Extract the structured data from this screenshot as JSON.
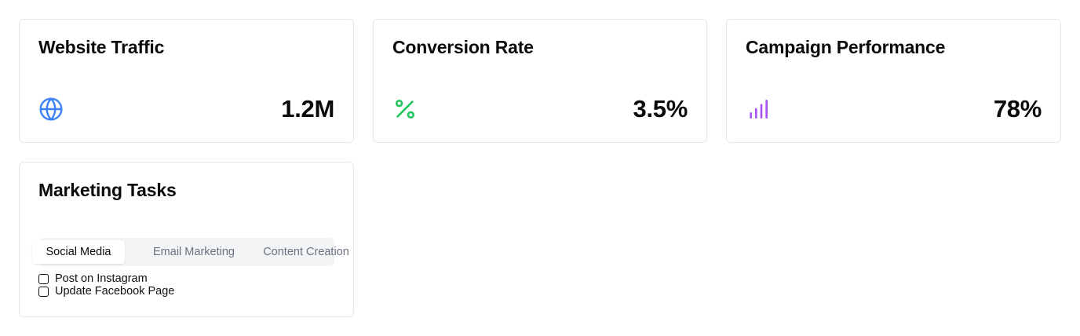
{
  "stats": [
    {
      "title": "Website Traffic",
      "value": "1.2M",
      "icon": "globe-icon",
      "color": "#3b82f6"
    },
    {
      "title": "Conversion Rate",
      "value": "3.5%",
      "icon": "percent-icon",
      "color": "#22c55e"
    },
    {
      "title": "Campaign Performance",
      "value": "78%",
      "icon": "bar-chart-icon",
      "color": "#a855f7"
    }
  ],
  "tasks_card": {
    "title": "Marketing Tasks",
    "tabs": [
      {
        "label": "Social Media",
        "active": true
      },
      {
        "label": "Email Marketing",
        "active": false
      },
      {
        "label": "Content Creation",
        "active": false
      }
    ],
    "items": [
      {
        "label": "Post on Instagram",
        "checked": false
      },
      {
        "label": "Update Facebook Page",
        "checked": false
      }
    ]
  }
}
